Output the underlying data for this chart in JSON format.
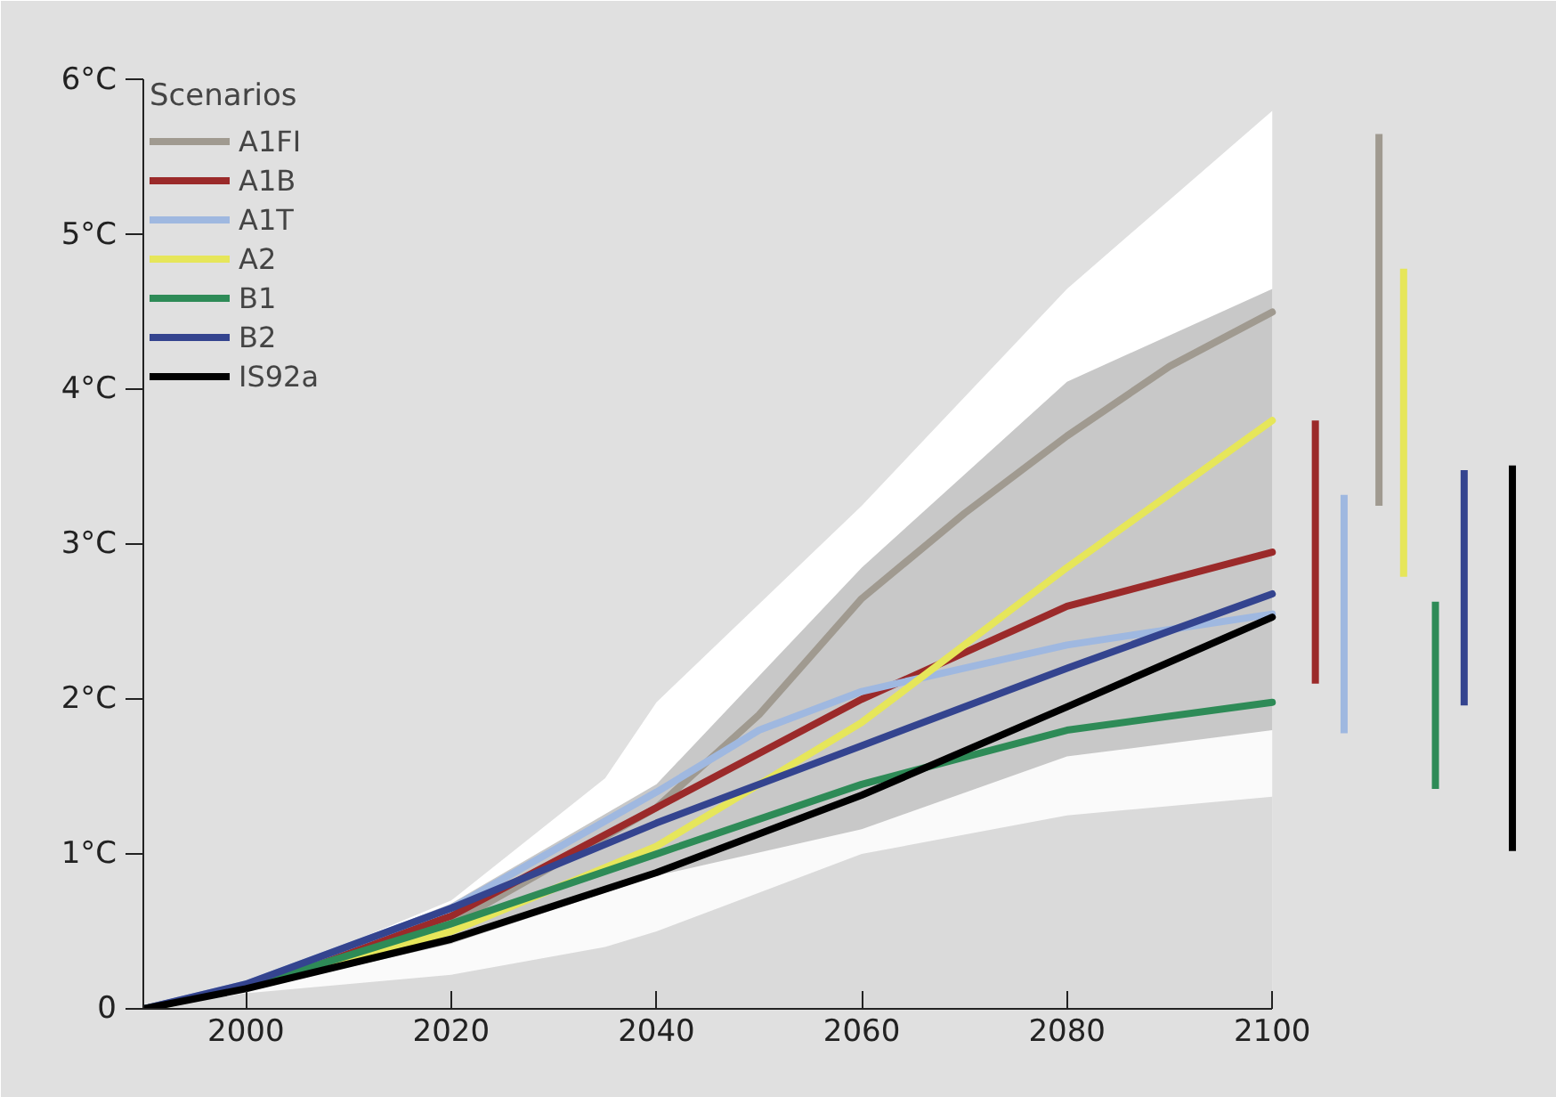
{
  "chart_data": {
    "type": "line",
    "legend_title": "Scenarios",
    "legend": "top left",
    "grid": false,
    "xlim": [
      1990,
      2126
    ],
    "ylim": [
      0,
      6.05
    ],
    "xticks": [
      2000,
      2020,
      2040,
      2060,
      2080,
      2100
    ],
    "yticks": [
      {
        "value": 0,
        "label": "0"
      },
      {
        "value": 1,
        "label": "1°C"
      },
      {
        "value": 2,
        "label": "2°C"
      },
      {
        "value": 3,
        "label": "3°C"
      },
      {
        "value": 4,
        "label": "4°C"
      },
      {
        "value": 5,
        "label": "5°C"
      },
      {
        "value": 6,
        "label": "6°C"
      }
    ],
    "series": [
      {
        "type": "area",
        "color": "#ffffff",
        "x": [
          1990,
          2000,
          2020,
          2035,
          2040,
          2060,
          2080,
          2100
        ],
        "values": [
          0,
          0.15,
          0.7,
          1.49,
          1.98,
          3.25,
          4.65,
          5.8
        ]
      },
      {
        "type": "area",
        "color": "#c8c8c8",
        "x": [
          1990,
          2000,
          2020,
          2040,
          2060,
          2080,
          2100
        ],
        "values": [
          0,
          0.16,
          0.68,
          1.45,
          2.85,
          4.05,
          4.65
        ]
      },
      {
        "type": "area",
        "color": "#fafafa",
        "x": [
          1990,
          2000,
          2020,
          2040,
          2060,
          2080,
          2100
        ],
        "values": [
          0,
          0.12,
          0.42,
          0.86,
          1.16,
          1.63,
          1.8
        ]
      },
      {
        "type": "area",
        "color": "#dadada",
        "x": [
          1990,
          2000,
          2020,
          2035,
          2040,
          2060,
          2080,
          2100
        ],
        "values": [
          0,
          0.1,
          0.22,
          0.4,
          0.5,
          1.0,
          1.25,
          1.37
        ]
      },
      {
        "name": "A1FI",
        "color": "#a09a90",
        "x": [
          1990,
          2000,
          2020,
          2040,
          2050,
          2060,
          2070,
          2080,
          2090,
          2100
        ],
        "values": [
          0,
          0.15,
          0.55,
          1.3,
          1.9,
          2.65,
          3.2,
          3.7,
          4.15,
          4.5
        ]
      },
      {
        "name": "A1B",
        "color": "#9b2a2a",
        "x": [
          1990,
          2000,
          2020,
          2040,
          2060,
          2080,
          2100
        ],
        "values": [
          0,
          0.15,
          0.6,
          1.3,
          2.0,
          2.6,
          2.95
        ]
      },
      {
        "name": "A1T",
        "color": "#9fb8e0",
        "x": [
          1990,
          2000,
          2020,
          2040,
          2050,
          2060,
          2070,
          2080,
          2100
        ],
        "values": [
          0,
          0.16,
          0.65,
          1.4,
          1.8,
          2.05,
          2.2,
          2.35,
          2.55
        ]
      },
      {
        "name": "A2",
        "color": "#e6e65a",
        "x": [
          1990,
          2000,
          2020,
          2040,
          2060,
          2080,
          2100
        ],
        "values": [
          0,
          0.14,
          0.5,
          1.05,
          1.85,
          2.85,
          3.8
        ]
      },
      {
        "name": "B1",
        "color": "#2e8b57",
        "x": [
          1990,
          2000,
          2020,
          2040,
          2060,
          2080,
          2100
        ],
        "values": [
          0,
          0.14,
          0.55,
          1.0,
          1.45,
          1.8,
          1.98
        ]
      },
      {
        "name": "B2",
        "color": "#34448f",
        "x": [
          1990,
          2000,
          2020,
          2040,
          2060,
          2080,
          2100
        ],
        "values": [
          0,
          0.16,
          0.65,
          1.2,
          1.7,
          2.2,
          2.68
        ]
      },
      {
        "name": "IS92a",
        "color": "#000000",
        "x": [
          1990,
          2000,
          2020,
          2040,
          2060,
          2080,
          2100
        ],
        "values": [
          0,
          0.13,
          0.45,
          0.88,
          1.38,
          1.95,
          2.53
        ]
      },
      {
        "color": "#9b2a2a",
        "x": [
          2104.2,
          2104.2
        ],
        "values": [
          2.1,
          3.8
        ]
      },
      {
        "color": "#9fb8e0",
        "x": [
          2107,
          2107
        ],
        "values": [
          1.78,
          3.32
        ]
      },
      {
        "color": "#a09a90",
        "x": [
          2110.4,
          2110.4
        ],
        "values": [
          3.25,
          5.65
        ]
      },
      {
        "color": "#e6e65a",
        "x": [
          2112.8,
          2112.8
        ],
        "values": [
          2.79,
          4.78
        ]
      },
      {
        "color": "#2e8b57",
        "x": [
          2115.9,
          2115.9
        ],
        "values": [
          1.42,
          2.63
        ]
      },
      {
        "color": "#34448f",
        "x": [
          2118.7,
          2118.7
        ],
        "values": [
          1.96,
          3.48
        ]
      },
      {
        "color": "#000000",
        "x": [
          2123.4,
          2123.4
        ],
        "values": [
          1.02,
          3.51
        ]
      }
    ]
  }
}
